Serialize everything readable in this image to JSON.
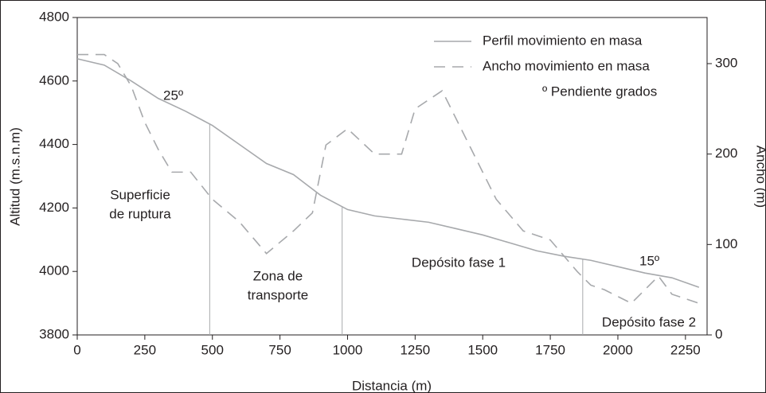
{
  "chart_data": {
    "type": "line",
    "y_label": "Altitud (m.s.n.m)",
    "y2_label": "Ancho (m)",
    "x_label": "Distancia (m)",
    "xlim": [
      0,
      2330
    ],
    "xticks": [
      0,
      250,
      500,
      750,
      1000,
      1250,
      1500,
      1750,
      2000,
      2250
    ],
    "ylim": [
      3800,
      4800
    ],
    "yticks": [
      3800,
      4000,
      4200,
      4400,
      4600,
      4800
    ],
    "y2lim": [
      0,
      351
    ],
    "y2ticks": [
      0,
      100,
      200,
      300
    ],
    "series": [
      {
        "name": "Perfil movimiento en masa",
        "color": "#a7a9ac",
        "dash": false,
        "x": [
          0,
          100,
          200,
          300,
          400,
          500,
          600,
          700,
          800,
          900,
          1000,
          1100,
          1200,
          1300,
          1400,
          1500,
          1600,
          1700,
          1800,
          1900,
          2000,
          2100,
          2200,
          2300
        ],
        "values": [
          4670,
          4650,
          4600,
          4545,
          4505,
          4460,
          4400,
          4340,
          4305,
          4240,
          4195,
          4175,
          4165,
          4155,
          4135,
          4115,
          4090,
          4065,
          4048,
          4035,
          4015,
          3995,
          3980,
          3950
        ]
      },
      {
        "name": "Ancho movimiento en masa",
        "color": "#a7a9ac",
        "dash": true,
        "axis": "y2",
        "x": [
          0,
          100,
          150,
          200,
          250,
          300,
          350,
          420,
          500,
          600,
          700,
          800,
          870,
          920,
          1000,
          1100,
          1200,
          1250,
          1350,
          1450,
          1550,
          1650,
          1750,
          1850,
          1900,
          1950,
          2050,
          2150,
          2200,
          2300
        ],
        "values": [
          310,
          310,
          300,
          275,
          235,
          205,
          180,
          180,
          150,
          125,
          90,
          115,
          135,
          210,
          228,
          200,
          200,
          250,
          270,
          210,
          150,
          115,
          105,
          70,
          55,
          50,
          35,
          65,
          45,
          35
        ]
      }
    ],
    "legend_note": "º Pendiente grados",
    "dividers": [
      490,
      980,
      1870
    ],
    "annotations": [
      "25º",
      "15º",
      "Superficie",
      "de ruptura",
      "Zona de",
      "transporte",
      "Depósito fase 1",
      "Depósito fase 2"
    ]
  }
}
